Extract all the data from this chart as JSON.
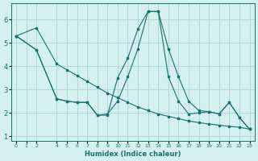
{
  "xlabel": "Humidex (Indice chaleur)",
  "bg_color": "#d4f0f0",
  "line_color": "#1a7070",
  "grid_color": "#b0d8d8",
  "ylim": [
    0.8,
    6.7
  ],
  "yticks": [
    1,
    2,
    3,
    4,
    5,
    6
  ],
  "xlim": [
    -0.5,
    23.5
  ],
  "line1_x": [
    0,
    2,
    4,
    5,
    6,
    7,
    8,
    9,
    10,
    11,
    12,
    13,
    14,
    15,
    16,
    17,
    18,
    19,
    20,
    21,
    22,
    23
  ],
  "line1_y": [
    5.3,
    5.65,
    4.1,
    3.85,
    3.6,
    3.35,
    3.1,
    2.85,
    2.65,
    2.45,
    2.25,
    2.1,
    1.95,
    1.85,
    1.75,
    1.65,
    1.58,
    1.52,
    1.47,
    1.42,
    1.38,
    1.3
  ],
  "line2_x": [
    0,
    2,
    4,
    5,
    6,
    7,
    8,
    9,
    10,
    11,
    12,
    13,
    14,
    15,
    16,
    17,
    18,
    19,
    20,
    21,
    22,
    23
  ],
  "line2_y": [
    5.3,
    4.7,
    2.6,
    2.5,
    2.45,
    2.45,
    1.9,
    1.9,
    3.5,
    4.35,
    5.6,
    6.35,
    6.35,
    4.75,
    3.55,
    2.5,
    2.1,
    2.05,
    1.95,
    2.45,
    1.8,
    1.3
  ],
  "line3_x": [
    0,
    2,
    4,
    5,
    6,
    7,
    8,
    9,
    10,
    11,
    12,
    13,
    14,
    15,
    16,
    17,
    18,
    19,
    20,
    21,
    22,
    23
  ],
  "line3_y": [
    5.3,
    4.7,
    2.6,
    2.5,
    2.45,
    2.45,
    1.9,
    1.95,
    2.5,
    3.55,
    4.75,
    6.35,
    6.35,
    3.55,
    2.5,
    1.95,
    2.0,
    2.05,
    1.95,
    2.45,
    1.8,
    1.3
  ],
  "xtick_pos": [
    0,
    1,
    2,
    4,
    5,
    6,
    7,
    8,
    9,
    10,
    11,
    12,
    13,
    14,
    15,
    16,
    17,
    18,
    19,
    20,
    21,
    22,
    23
  ],
  "xtick_labels": [
    "0",
    "1",
    "2",
    "4",
    "5",
    "6",
    "7",
    "8",
    "9",
    "10",
    "11",
    "12",
    "13",
    "14",
    "15",
    "16",
    "17",
    "18",
    "19",
    "20",
    "21",
    "22",
    "23"
  ]
}
